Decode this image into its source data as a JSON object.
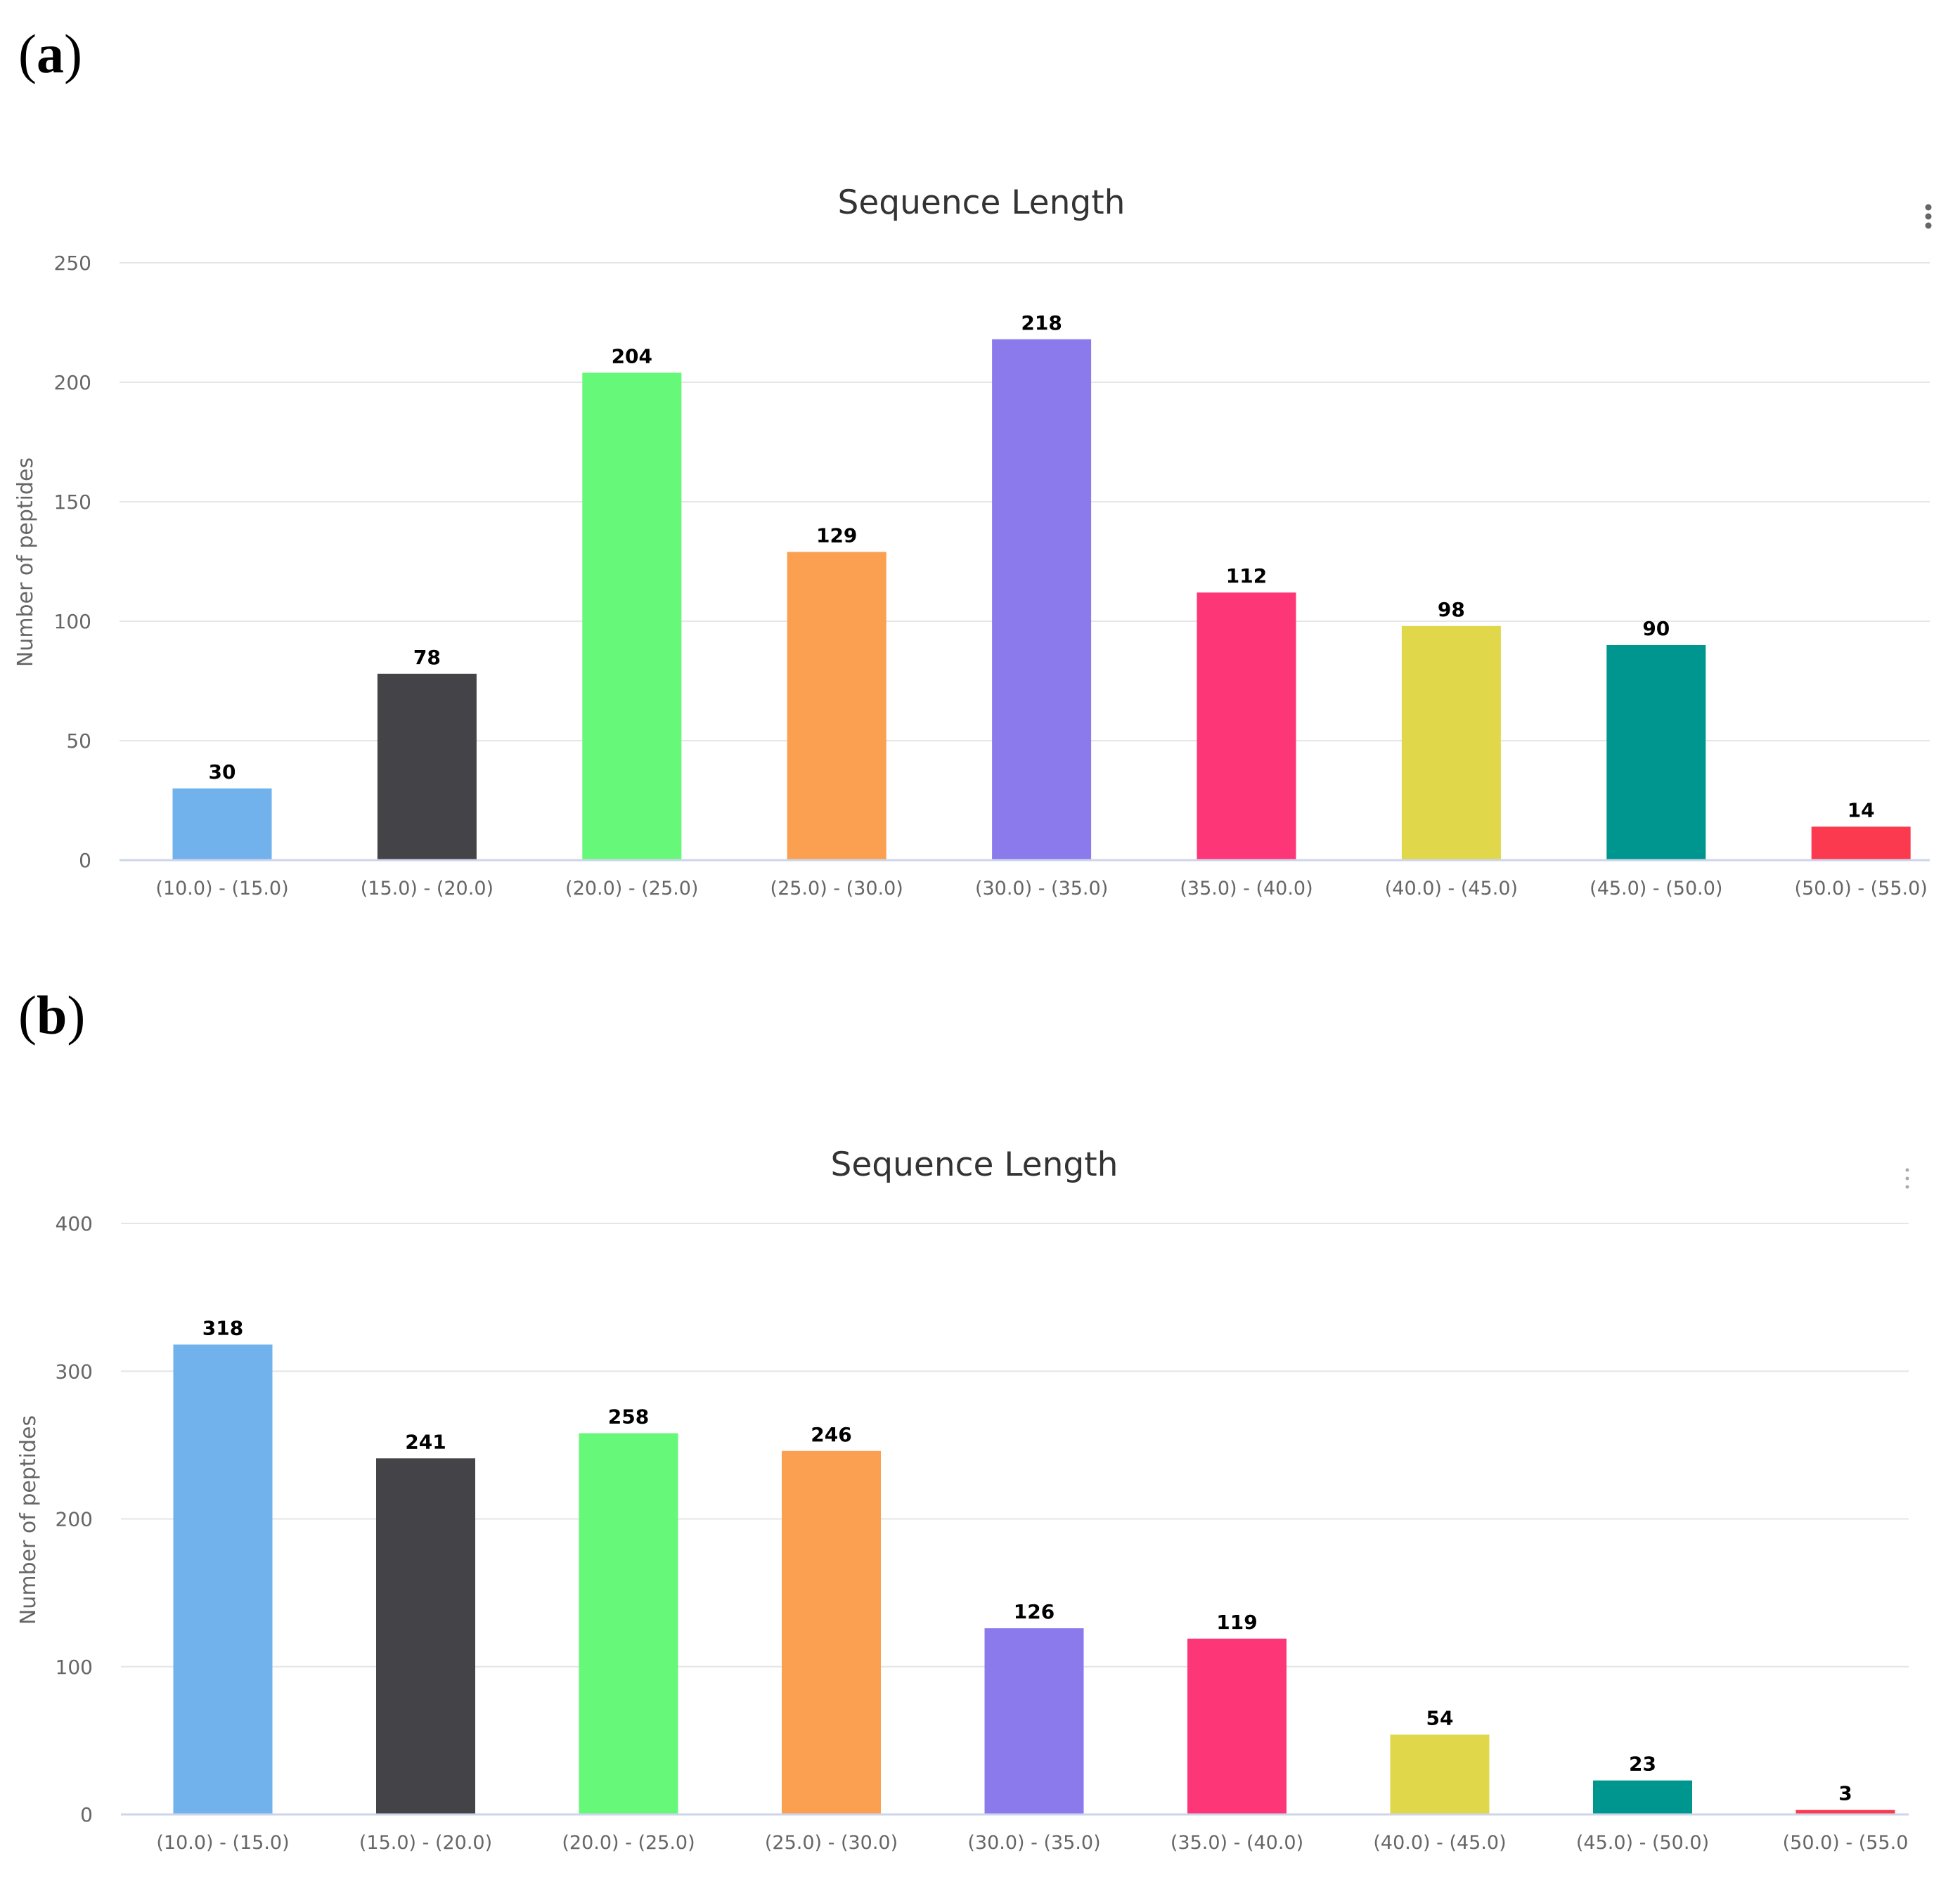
{
  "panels": [
    {
      "id": "a",
      "open": "(",
      "letter": "a",
      "close": ")"
    },
    {
      "id": "b",
      "open": "(",
      "letter": "b",
      "close": ")"
    }
  ],
  "chart_data": [
    {
      "type": "bar",
      "title": "Sequence Length",
      "xlabel": "",
      "ylabel": "Number of peptides",
      "ylim": [
        0,
        250
      ],
      "yticks": [
        0,
        50,
        100,
        150,
        200,
        250
      ],
      "grid": true,
      "categories": [
        "(10.0) - (15.0)",
        "(15.0) - (20.0)",
        "(20.0) - (25.0)",
        "(25.0) - (30.0)",
        "(30.0) - (35.0)",
        "(35.0) - (40.0)",
        "(40.0) - (45.0)",
        "(45.0) - (50.0)",
        "(50.0) - (55.0)"
      ],
      "values": [
        30,
        78,
        204,
        129,
        218,
        112,
        98,
        90,
        14
      ],
      "colors": [
        "#71b2ec",
        "#434348",
        "#66f878",
        "#fb9f50",
        "#8a7aec",
        "#fd3678",
        "#e1d74a",
        "#009690",
        "#fb3a4f"
      ],
      "menu_icon": "context-menu-icon"
    },
    {
      "type": "bar",
      "title": "Sequence Length",
      "xlabel": "",
      "ylabel": "Number of peptides",
      "ylim": [
        0,
        400
      ],
      "yticks": [
        0,
        100,
        200,
        300,
        400
      ],
      "grid": true,
      "categories": [
        "(10.0) - (15.0)",
        "(15.0) - (20.0)",
        "(20.0) - (25.0)",
        "(25.0) - (30.0)",
        "(30.0) - (35.0)",
        "(35.0) - (40.0)",
        "(40.0) - (45.0)",
        "(45.0) - (50.0)",
        "(50.0) - (55.0"
      ],
      "values": [
        318,
        241,
        258,
        246,
        126,
        119,
        54,
        23,
        3
      ],
      "colors": [
        "#71b2ec",
        "#434348",
        "#66f878",
        "#fb9f50",
        "#8a7aec",
        "#fd3678",
        "#e1d74a",
        "#009690",
        "#fb3a4f"
      ],
      "menu_icon": "context-menu-icon"
    }
  ]
}
